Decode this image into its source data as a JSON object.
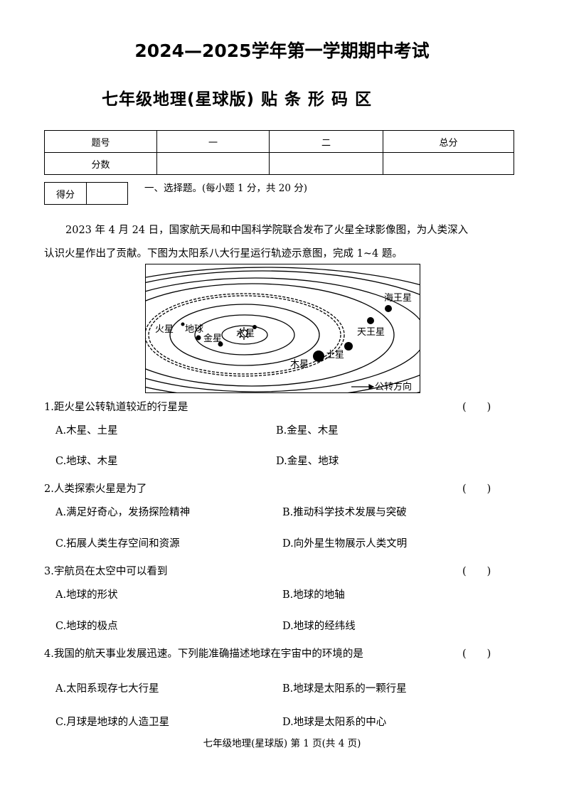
{
  "title": "2024—2025学年第一学期期中考试",
  "subtitle": "七年级地理(星球版) 贴 条 形 码 区",
  "score_table": {
    "headers": [
      "题号",
      "一",
      "二",
      "总分"
    ],
    "row_label": "分数"
  },
  "score_box_label": "得分",
  "section_title": "一、选择题。(每小题 1 分，共 20 分)",
  "intro": [
    "2023 年 4 月 24 日，国家航天局和中国科学院联合发布了火星全球影像图，为人类深入",
    "认识火星作出了贡献。下图为太阳系八大行星运行轨迹示意图，完成 1~4 题。"
  ],
  "diagram": {
    "planets": [
      "水星",
      "金星",
      "地球",
      "火星",
      "木星",
      "土星",
      "天王星",
      "海王星"
    ],
    "legend": "公转方向",
    "sun_icon": "sun-icon"
  },
  "questions": [
    {
      "stem": "1.距火星公转轨道较近的行星是",
      "paren": "(　　)",
      "options": [
        "A.木星、土星",
        "B.金星、木星",
        "C.地球、木星",
        "D.金星、地球"
      ]
    },
    {
      "stem": "2.人类探索火星是为了",
      "paren": "(　　)",
      "options": [
        "A.满足好奇心，发扬探险精神",
        "B.推动科学技术发展与突破",
        "C.拓展人类生存空间和资源",
        "D.向外星生物展示人类文明"
      ]
    },
    {
      "stem": "3.宇航员在太空中可以看到",
      "paren": "(　　)",
      "options": [
        "A.地球的形状",
        "B.地球的地轴",
        "C.地球的极点",
        "D.地球的经纬线"
      ]
    },
    {
      "stem": "4.我国的航天事业发展迅速。下列能准确描述地球在宇宙中的环境的是",
      "paren": "(　　)",
      "options": [
        "A.太阳系现存七大行星",
        "B.地球是太阳系的一颗行星",
        "C.月球是地球的人造卫星",
        "D.地球是太阳系的中心"
      ]
    }
  ],
  "footer": "七年级地理(星球版) 第 1 页(共 4 页)"
}
